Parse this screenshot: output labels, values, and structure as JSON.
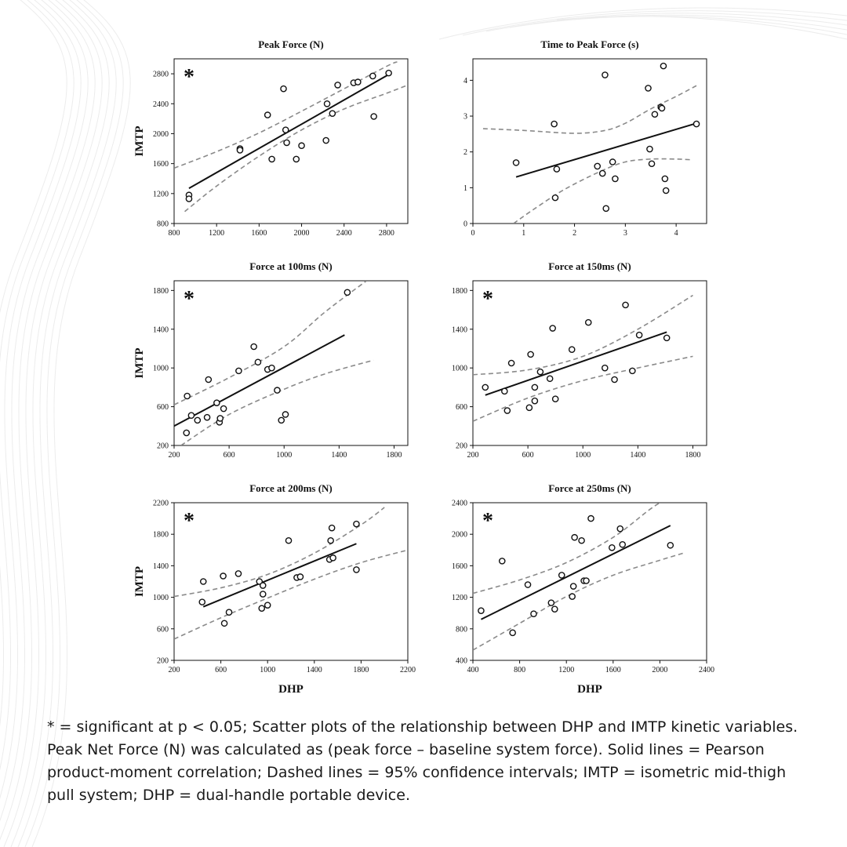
{
  "caption": "* = significant at p < 0.05; Scatter plots of the relationship between DHP and IMTP kinetic variables. Peak Net Force (N) was calculated as (peak force – baseline system force). Solid lines = Pearson product-moment correlation; Dashed lines = 95% confidence intervals; IMTP = isometric mid-thigh pull system; DHP = dual-handle portable device.",
  "colors": {
    "points": "#111111",
    "regression_line": "#111111",
    "ci_line": "#8a8a8a",
    "background_waves": "#ececec"
  },
  "chart_data": [
    {
      "type": "scatter",
      "title": "Peak Force (N)",
      "xlabel": "",
      "ylabel": "IMTP",
      "significance_marker": "*",
      "xlim": [
        800,
        3000
      ],
      "ylim": [
        800,
        3000
      ],
      "xticks": [
        800,
        1200,
        1600,
        2000,
        2400,
        2800
      ],
      "yticks": [
        800,
        1200,
        1600,
        2000,
        2400,
        2800
      ],
      "points": [
        [
          940,
          1180
        ],
        [
          940,
          1130
        ],
        [
          1420,
          1800
        ],
        [
          1420,
          1780
        ],
        [
          1680,
          2250
        ],
        [
          1720,
          1660
        ],
        [
          1830,
          2600
        ],
        [
          1850,
          2050
        ],
        [
          1860,
          1880
        ],
        [
          1950,
          1660
        ],
        [
          2000,
          1840
        ],
        [
          2230,
          1910
        ],
        [
          2240,
          2400
        ],
        [
          2290,
          2270
        ],
        [
          2340,
          2650
        ],
        [
          2490,
          2680
        ],
        [
          2530,
          2690
        ],
        [
          2670,
          2770
        ],
        [
          2680,
          2230
        ],
        [
          2820,
          2810
        ]
      ],
      "regression_line": [
        [
          940,
          1270
        ],
        [
          2820,
          2790
        ]
      ],
      "ci_upper": [
        [
          800,
          1540
        ],
        [
          1200,
          1760
        ],
        [
          1600,
          2010
        ],
        [
          2000,
          2300
        ],
        [
          2400,
          2600
        ],
        [
          2800,
          2900
        ],
        [
          2900,
          2960
        ]
      ],
      "ci_lower": [
        [
          900,
          960
        ],
        [
          1200,
          1300
        ],
        [
          1600,
          1700
        ],
        [
          2000,
          2050
        ],
        [
          2400,
          2330
        ],
        [
          2800,
          2540
        ],
        [
          3000,
          2650
        ]
      ]
    },
    {
      "type": "scatter",
      "title": "Time to Peak Force (s)",
      "xlabel": "",
      "ylabel": "",
      "significance_marker": "",
      "xlim": [
        0,
        4.6
      ],
      "ylim": [
        0,
        4.6
      ],
      "xticks": [
        0,
        1,
        2,
        3,
        4
      ],
      "yticks": [
        0,
        1,
        2,
        3,
        4
      ],
      "points": [
        [
          0.85,
          1.7
        ],
        [
          1.6,
          2.78
        ],
        [
          1.62,
          0.72
        ],
        [
          1.65,
          1.52
        ],
        [
          2.45,
          1.6
        ],
        [
          2.55,
          1.4
        ],
        [
          2.6,
          4.15
        ],
        [
          2.62,
          0.42
        ],
        [
          2.75,
          1.72
        ],
        [
          2.8,
          1.25
        ],
        [
          3.45,
          3.78
        ],
        [
          3.48,
          2.08
        ],
        [
          3.52,
          1.67
        ],
        [
          3.58,
          3.05
        ],
        [
          3.7,
          3.25
        ],
        [
          3.72,
          3.22
        ],
        [
          3.75,
          4.4
        ],
        [
          3.78,
          1.25
        ],
        [
          3.8,
          0.92
        ],
        [
          4.4,
          2.78
        ]
      ],
      "regression_line": [
        [
          0.85,
          1.3
        ],
        [
          4.4,
          2.8
        ]
      ],
      "ci_upper": [
        [
          0.2,
          2.65
        ],
        [
          1,
          2.6
        ],
        [
          2,
          2.52
        ],
        [
          2.6,
          2.6
        ],
        [
          3,
          2.8
        ],
        [
          3.5,
          3.2
        ],
        [
          4,
          3.55
        ],
        [
          4.4,
          3.85
        ]
      ],
      "ci_lower": [
        [
          0.8,
          0.0
        ],
        [
          1.2,
          0.4
        ],
        [
          1.8,
          0.95
        ],
        [
          2.5,
          1.45
        ],
        [
          3,
          1.72
        ],
        [
          3.5,
          1.8
        ],
        [
          4,
          1.8
        ],
        [
          4.3,
          1.78
        ]
      ]
    },
    {
      "type": "scatter",
      "title": "Force at 100ms (N)",
      "xlabel": "",
      "ylabel": "IMTP",
      "significance_marker": "*",
      "xlim": [
        200,
        1900
      ],
      "ylim": [
        200,
        1900
      ],
      "xticks": [
        200,
        600,
        1000,
        1400,
        1800
      ],
      "yticks": [
        200,
        600,
        1000,
        1400,
        1800
      ],
      "points": [
        [
          290,
          330
        ],
        [
          295,
          710
        ],
        [
          325,
          510
        ],
        [
          370,
          460
        ],
        [
          440,
          490
        ],
        [
          450,
          880
        ],
        [
          510,
          640
        ],
        [
          530,
          440
        ],
        [
          535,
          480
        ],
        [
          560,
          580
        ],
        [
          670,
          970
        ],
        [
          780,
          1220
        ],
        [
          810,
          1060
        ],
        [
          880,
          985
        ],
        [
          910,
          1000
        ],
        [
          950,
          770
        ],
        [
          980,
          460
        ],
        [
          1010,
          520
        ],
        [
          1460,
          1780
        ]
      ],
      "regression_line": [
        [
          200,
          400
        ],
        [
          1440,
          1340
        ]
      ],
      "ci_upper": [
        [
          200,
          620
        ],
        [
          600,
          900
        ],
        [
          1000,
          1220
        ],
        [
          1300,
          1580
        ],
        [
          1600,
          1900
        ]
      ],
      "ci_lower": [
        [
          250,
          200
        ],
        [
          600,
          520
        ],
        [
          1000,
          780
        ],
        [
          1300,
          940
        ],
        [
          1650,
          1080
        ]
      ]
    },
    {
      "type": "scatter",
      "title": "Force at 150ms (N)",
      "xlabel": "",
      "ylabel": "",
      "significance_marker": "*",
      "xlim": [
        200,
        1900
      ],
      "ylim": [
        200,
        1900
      ],
      "xticks": [
        200,
        600,
        1000,
        1400,
        1800
      ],
      "yticks": [
        200,
        600,
        1000,
        1400,
        1800
      ],
      "points": [
        [
          290,
          800
        ],
        [
          430,
          760
        ],
        [
          450,
          560
        ],
        [
          480,
          1050
        ],
        [
          610,
          590
        ],
        [
          620,
          1140
        ],
        [
          650,
          660
        ],
        [
          650,
          800
        ],
        [
          690,
          960
        ],
        [
          760,
          890
        ],
        [
          780,
          1410
        ],
        [
          800,
          680
        ],
        [
          920,
          1190
        ],
        [
          1040,
          1470
        ],
        [
          1160,
          1000
        ],
        [
          1230,
          880
        ],
        [
          1310,
          1650
        ],
        [
          1360,
          970
        ],
        [
          1410,
          1340
        ],
        [
          1610,
          1310
        ]
      ],
      "regression_line": [
        [
          290,
          720
        ],
        [
          1610,
          1370
        ]
      ],
      "ci_upper": [
        [
          200,
          930
        ],
        [
          600,
          980
        ],
        [
          1000,
          1120
        ],
        [
          1400,
          1400
        ],
        [
          1800,
          1750
        ]
      ],
      "ci_lower": [
        [
          200,
          450
        ],
        [
          600,
          690
        ],
        [
          1000,
          870
        ],
        [
          1400,
          1000
        ],
        [
          1800,
          1120
        ]
      ]
    },
    {
      "type": "scatter",
      "title": "Force at 200ms (N)",
      "xlabel": "DHP",
      "ylabel": "IMTP",
      "significance_marker": "*",
      "xlim": [
        200,
        2200
      ],
      "ylim": [
        200,
        2200
      ],
      "xticks": [
        200,
        600,
        1000,
        1400,
        1800,
        2200
      ],
      "yticks": [
        200,
        600,
        1000,
        1400,
        1800,
        2200
      ],
      "points": [
        [
          440,
          940
        ],
        [
          450,
          1200
        ],
        [
          620,
          1270
        ],
        [
          630,
          670
        ],
        [
          670,
          810
        ],
        [
          750,
          1300
        ],
        [
          930,
          1200
        ],
        [
          950,
          860
        ],
        [
          960,
          1040
        ],
        [
          960,
          1150
        ],
        [
          1000,
          900
        ],
        [
          1180,
          1720
        ],
        [
          1250,
          1250
        ],
        [
          1280,
          1260
        ],
        [
          1530,
          1480
        ],
        [
          1540,
          1720
        ],
        [
          1550,
          1880
        ],
        [
          1560,
          1500
        ],
        [
          1760,
          1930
        ],
        [
          1760,
          1350
        ]
      ],
      "regression_line": [
        [
          450,
          880
        ],
        [
          1760,
          1680
        ]
      ],
      "ci_upper": [
        [
          200,
          1010
        ],
        [
          600,
          1120
        ],
        [
          1000,
          1290
        ],
        [
          1400,
          1560
        ],
        [
          1800,
          1920
        ],
        [
          2000,
          2140
        ]
      ],
      "ci_lower": [
        [
          200,
          470
        ],
        [
          600,
          740
        ],
        [
          1000,
          990
        ],
        [
          1400,
          1230
        ],
        [
          1800,
          1440
        ],
        [
          2200,
          1600
        ]
      ]
    },
    {
      "type": "scatter",
      "title": "Force at 250ms (N)",
      "xlabel": "DHP",
      "ylabel": "",
      "significance_marker": "*",
      "xlim": [
        400,
        2400
      ],
      "ylim": [
        400,
        2400
      ],
      "xticks": [
        400,
        800,
        1200,
        1600,
        2000,
        2400
      ],
      "yticks": [
        400,
        800,
        1200,
        1600,
        2000,
        2400
      ],
      "points": [
        [
          470,
          1030
        ],
        [
          650,
          1660
        ],
        [
          740,
          750
        ],
        [
          870,
          1360
        ],
        [
          920,
          990
        ],
        [
          1070,
          1130
        ],
        [
          1100,
          1050
        ],
        [
          1160,
          1480
        ],
        [
          1250,
          1210
        ],
        [
          1260,
          1340
        ],
        [
          1270,
          1960
        ],
        [
          1330,
          1920
        ],
        [
          1350,
          1410
        ],
        [
          1370,
          1410
        ],
        [
          1410,
          2200
        ],
        [
          1590,
          1830
        ],
        [
          1660,
          2070
        ],
        [
          1680,
          1870
        ],
        [
          2090,
          1860
        ]
      ],
      "regression_line": [
        [
          470,
          920
        ],
        [
          2090,
          2110
        ]
      ],
      "ci_upper": [
        [
          400,
          1250
        ],
        [
          800,
          1420
        ],
        [
          1200,
          1640
        ],
        [
          1600,
          1960
        ],
        [
          1900,
          2300
        ],
        [
          2000,
          2400
        ]
      ],
      "ci_lower": [
        [
          400,
          530
        ],
        [
          800,
          870
        ],
        [
          1200,
          1210
        ],
        [
          1600,
          1480
        ],
        [
          2000,
          1670
        ],
        [
          2200,
          1760
        ]
      ]
    }
  ]
}
